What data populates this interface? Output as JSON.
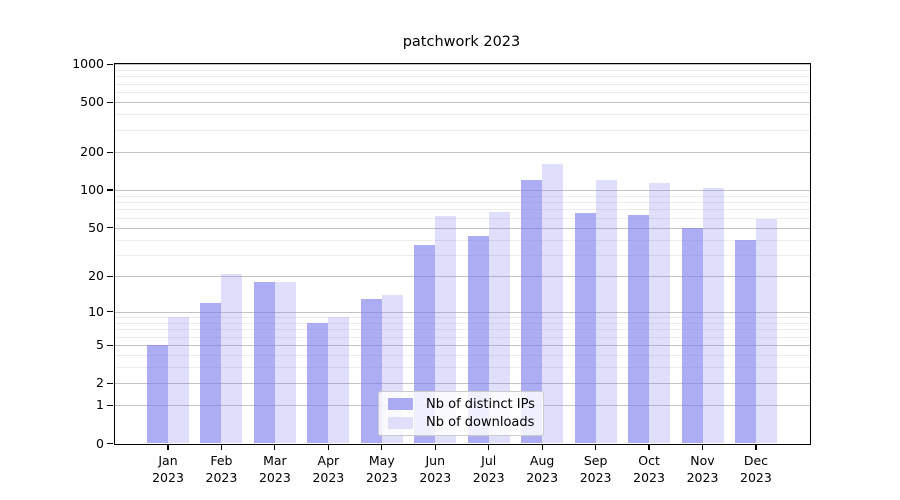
{
  "title": "patchwork 2023",
  "legend": {
    "items": [
      {
        "label": "Nb of distinct IPs",
        "swatch_color": "#ababf3"
      },
      {
        "label": "Nb of downloads",
        "swatch_color": "#dfdffa"
      }
    ]
  },
  "colors": {
    "bar_dark": "rgba(122,122,237,0.62)",
    "bar_light": "rgba(122,122,237,0.24)",
    "grid_major": "#c4c4c4",
    "grid_minor": "#ececec",
    "axis": "#000000"
  },
  "chart_data": {
    "type": "bar",
    "title": "patchwork 2023",
    "categories": [
      "Jan 2023",
      "Feb 2023",
      "Mar 2023",
      "Apr 2023",
      "May 2023",
      "Jun 2023",
      "Jul 2023",
      "Aug 2023",
      "Sep 2023",
      "Oct 2023",
      "Nov 2023",
      "Dec 2023"
    ],
    "series": [
      {
        "name": "Nb of distinct IPs",
        "values": [
          5,
          12,
          18,
          8,
          13,
          36,
          43,
          120,
          66,
          63,
          50,
          40
        ]
      },
      {
        "name": "Nb of downloads",
        "values": [
          9,
          21,
          18,
          9,
          14,
          62,
          67,
          162,
          120,
          113,
          104,
          59
        ]
      }
    ],
    "xlabel": "",
    "ylabel": "",
    "yscale": "log1p",
    "ylim": [
      0,
      1000
    ],
    "yticks": [
      0,
      1,
      2,
      5,
      10,
      20,
      50,
      100,
      200,
      500,
      1000
    ],
    "yticks_minor": [
      3,
      4,
      6,
      7,
      8,
      9,
      30,
      40,
      60,
      70,
      80,
      90,
      300,
      400,
      600,
      700,
      800,
      900
    ],
    "grid": true,
    "legend_position": "lower center"
  }
}
